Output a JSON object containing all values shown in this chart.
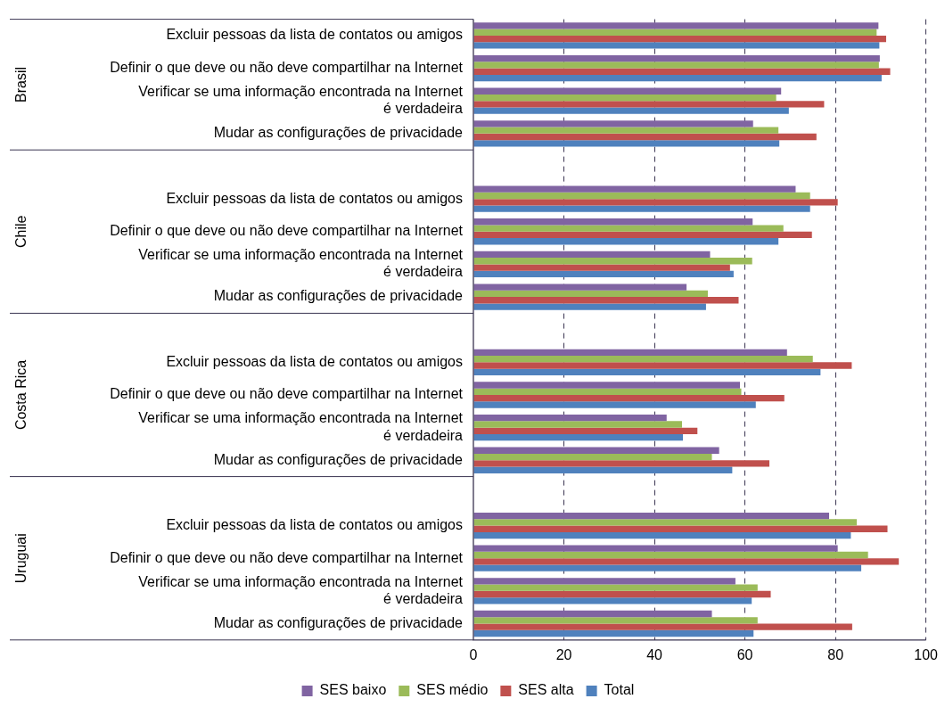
{
  "chart_data": {
    "type": "bar",
    "orientation": "horizontal",
    "categories": [
      "Excluir pessoas da lista de contatos ou amigos",
      "Definir o que deve ou não deve compartilhar na Internet",
      "Verificar se uma informação encontrada na Internet\né verdadeira",
      "Mudar as configurações de privacidade",
      null,
      "Excluir pessoas da lista de contatos ou amigos",
      "Definir o que deve ou não deve compartilhar na Internet",
      "Verificar se uma informação encontrada na Internet\né verdadeira",
      "Mudar as configurações de privacidade",
      null,
      "Excluir pessoas da lista de contatos ou amigos",
      "Definir o que deve ou não deve compartilhar na Internet",
      "Verificar se uma informação encontrada na Internet\né verdadeira",
      "Mudar as configurações de privacidade",
      null,
      "Excluir pessoas da lista de contatos ou amigos",
      "Definir o que deve ou não deve compartilhar na Internet",
      "Verificar se uma informação encontrada na Internet\né verdadeira",
      "Mudar as configurações de privacidade"
    ],
    "series": [
      {
        "name": "SES baixo",
        "color": "#8064a2",
        "values": [
          89.5,
          89.8,
          68.0,
          61.8,
          null,
          71.2,
          61.7,
          52.3,
          47.1,
          null,
          69.3,
          58.9,
          42.7,
          54.3,
          null,
          78.6,
          80.5,
          57.9,
          52.7
        ]
      },
      {
        "name": "SES médio",
        "color": "#9bbb59",
        "values": [
          89.1,
          89.6,
          66.9,
          67.4,
          null,
          74.4,
          68.5,
          61.6,
          51.8,
          null,
          75.0,
          59.2,
          46.1,
          52.7,
          null,
          84.7,
          87.2,
          62.8,
          62.8
        ]
      },
      {
        "name": "SES alta",
        "color": "#c0504d",
        "values": [
          91.2,
          92.1,
          77.5,
          75.8,
          null,
          80.5,
          74.8,
          56.7,
          58.6,
          null,
          83.6,
          68.7,
          49.5,
          65.4,
          null,
          91.5,
          94.0,
          65.7,
          83.7
        ]
      },
      {
        "name": "Total",
        "color": "#4f81bd",
        "values": [
          89.7,
          90.2,
          69.7,
          67.6,
          null,
          74.4,
          67.4,
          57.5,
          51.4,
          null,
          76.7,
          62.4,
          46.3,
          57.2,
          null,
          83.4,
          85.7,
          61.5,
          61.9
        ]
      }
    ],
    "xlim": [
      0,
      100
    ],
    "xticks": [
      0,
      20,
      40,
      60,
      80,
      100
    ],
    "grid": "x",
    "legend": "bottom",
    "annotations": [
      "Brasil",
      "Chile",
      "Costa Rica",
      "Uruguai"
    ]
  }
}
